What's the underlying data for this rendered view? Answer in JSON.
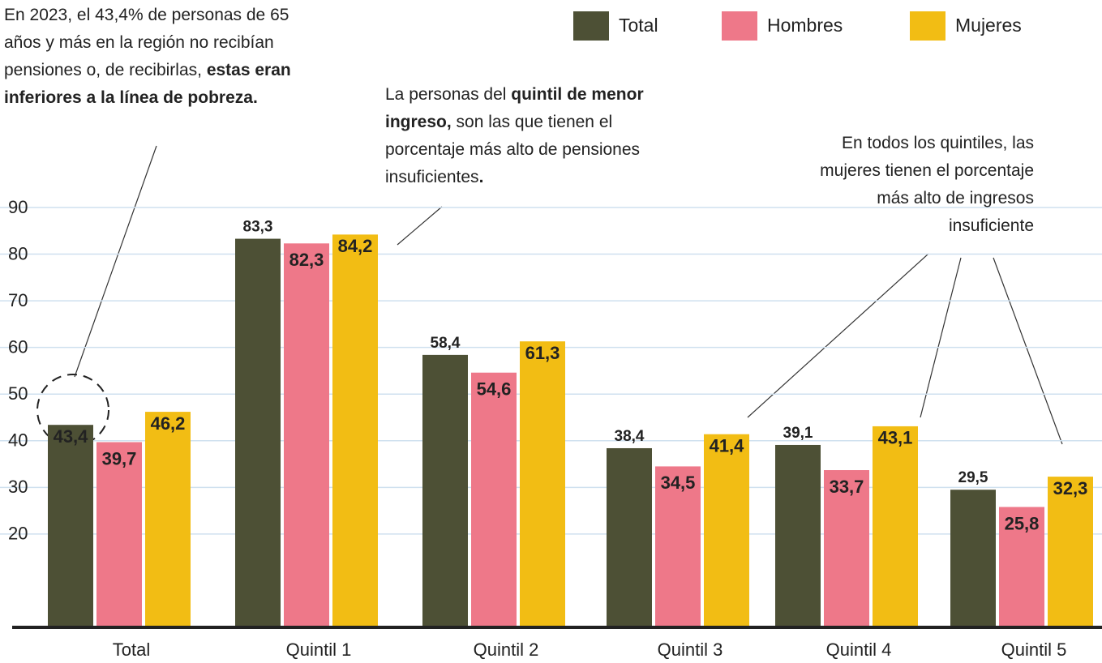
{
  "chart_data": {
    "type": "bar",
    "categories": [
      "Total",
      "Quintil 1",
      "Quintil 2",
      "Quintil 3",
      "Quintil 4",
      "Quintil 5"
    ],
    "series": [
      {
        "name": "Total",
        "color": "#4d5035",
        "values": [
          43.4,
          83.3,
          58.4,
          38.4,
          39.1,
          29.5
        ],
        "value_labels": [
          "43,4",
          "83,3",
          "58,4",
          "38,4",
          "39,1",
          "29,5"
        ]
      },
      {
        "name": "Hombres",
        "color": "#ee7889",
        "values": [
          39.7,
          82.3,
          54.6,
          34.5,
          33.7,
          25.8
        ],
        "value_labels": [
          "39,7",
          "82,3",
          "54,6",
          "34,5",
          "33,7",
          "25,8"
        ]
      },
      {
        "name": "Mujeres",
        "color": "#f2bd14",
        "values": [
          46.2,
          84.2,
          61.3,
          41.4,
          43.1,
          32.3
        ],
        "value_labels": [
          "46,2",
          "84,2",
          "61,3",
          "41,4",
          "43,1",
          "32,3"
        ]
      }
    ],
    "ylim": [
      0,
      90
    ],
    "yticks": [
      20,
      30,
      40,
      50,
      60,
      70,
      80,
      90
    ],
    "grid": true,
    "legend": "top-right",
    "annotations": [
      {
        "runs": [
          {
            "text": "En 2023, el 43,4% de personas de 65 años y más en la región no recibían pensiones o, de recibirlas, ",
            "bold": false
          },
          {
            "text": "estas eran inferiores a la línea de pobreza.",
            "bold": true
          }
        ]
      },
      {
        "runs": [
          {
            "text": "La personas del ",
            "bold": false
          },
          {
            "text": "quintil de menor ingreso,",
            "bold": true
          },
          {
            "text": " son las que tienen el porcentaje más alto de pensiones insuficientes",
            "bold": false
          },
          {
            "text": ".",
            "bold": true
          }
        ]
      },
      {
        "runs": [
          {
            "text": "En todos los quintiles, las mujeres tienen el porcentaje más alto de ingresos insuficiente",
            "bold": false
          }
        ]
      }
    ]
  }
}
